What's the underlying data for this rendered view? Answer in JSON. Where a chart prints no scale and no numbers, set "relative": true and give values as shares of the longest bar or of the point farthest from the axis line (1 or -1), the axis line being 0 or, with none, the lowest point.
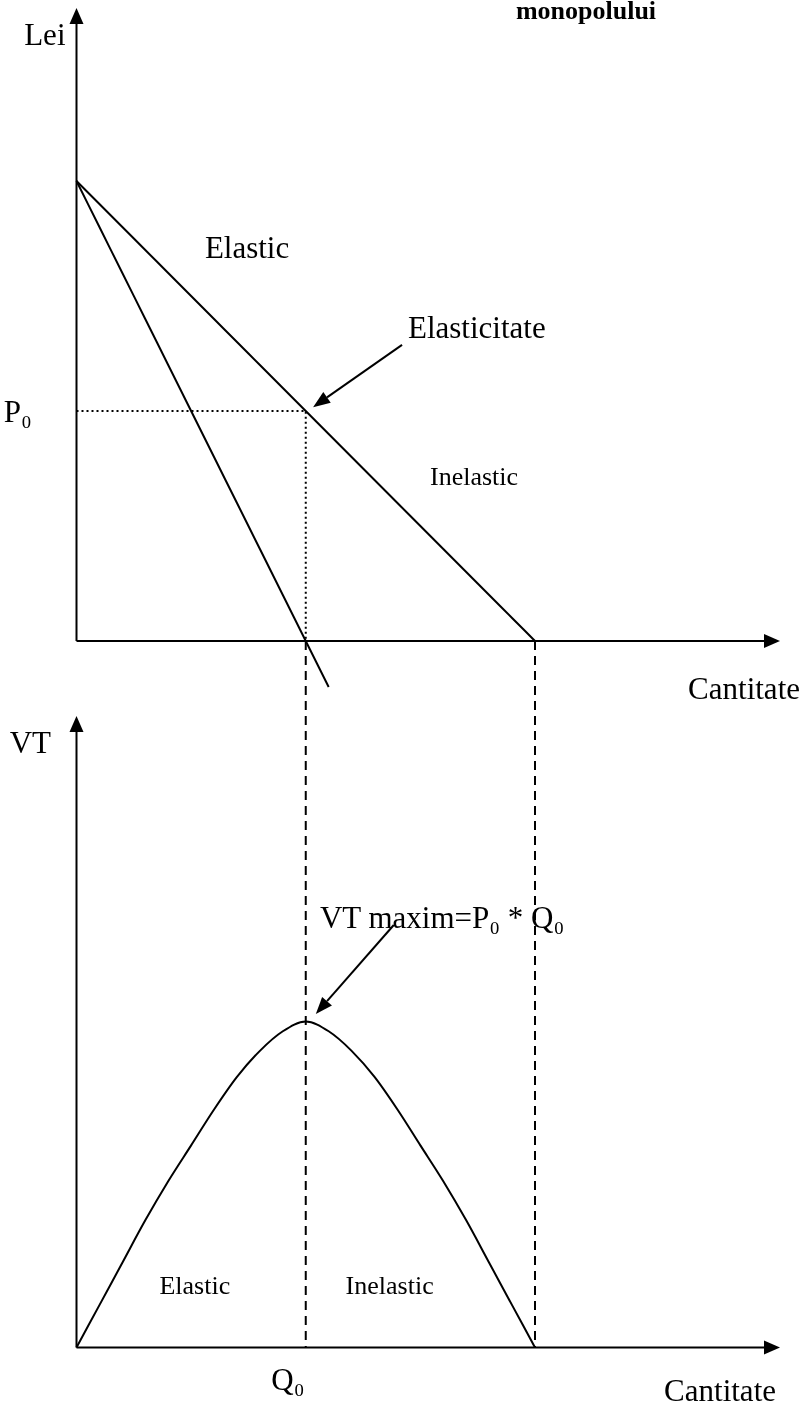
{
  "chart_data": [
    {
      "type": "line",
      "title": "monopolului",
      "xlabel": "Cantitate",
      "ylabel": "Lei",
      "relative": true,
      "categories": [
        null,
        null,
        null,
        null,
        null,
        null,
        null,
        null,
        null,
        null,
        null,
        null,
        null,
        null,
        null,
        null,
        null,
        null,
        null,
        null,
        null
      ],
      "series": [
        {
          "color": "#000000",
          "values": [
            1,
            0.95,
            0.9,
            0.85,
            0.8,
            0.75,
            0.7,
            0.65,
            0.6,
            0.55,
            0.5,
            0.45,
            0.4,
            0.35,
            0.3,
            0.25,
            0.2,
            0.15,
            0.1,
            0.05,
            0
          ]
        },
        {
          "color": "#000000",
          "values": [
            1,
            0.9,
            0.8,
            0.7,
            0.6,
            0.5,
            0.4,
            0.3,
            0.2,
            0.1,
            0,
            -0.1,
            null,
            null,
            null,
            null,
            null,
            null,
            null,
            null,
            null
          ]
        },
        {
          "type": "step",
          "color": "#000000",
          "line_style": "dotted",
          "values": [
            0.5,
            0.5,
            0.5,
            0.5,
            0.5,
            0.5,
            0.5,
            0.5,
            0.5,
            0.5,
            0,
            null,
            null,
            null,
            null,
            null,
            null,
            null,
            null,
            null,
            null
          ]
        }
      ],
      "annotations": [
        "Elastic",
        "Elasticitate",
        "Inelastic",
        "P₀"
      ]
    },
    {
      "type": "line",
      "xlabel": "Cantitate",
      "ylabel": "VT",
      "relative": true,
      "categories": [
        null,
        null,
        null,
        null,
        null,
        null,
        null,
        null,
        null,
        null,
        null,
        null,
        null,
        null,
        null,
        null,
        null,
        null,
        null,
        null,
        null
      ],
      "series": [
        {
          "color": "#000000",
          "values": [
            0,
            0.13,
            0.26,
            0.39,
            0.51,
            0.62,
            0.73,
            0.83,
            0.91,
            0.97,
            1,
            0.97,
            0.91,
            0.83,
            0.73,
            0.62,
            0.51,
            0.39,
            0.26,
            0.13,
            0
          ]
        }
      ],
      "annotations": [
        "VT maxim=P₀ * Q₀",
        "Elastic",
        "Inelastic",
        "Q₀"
      ]
    }
  ]
}
